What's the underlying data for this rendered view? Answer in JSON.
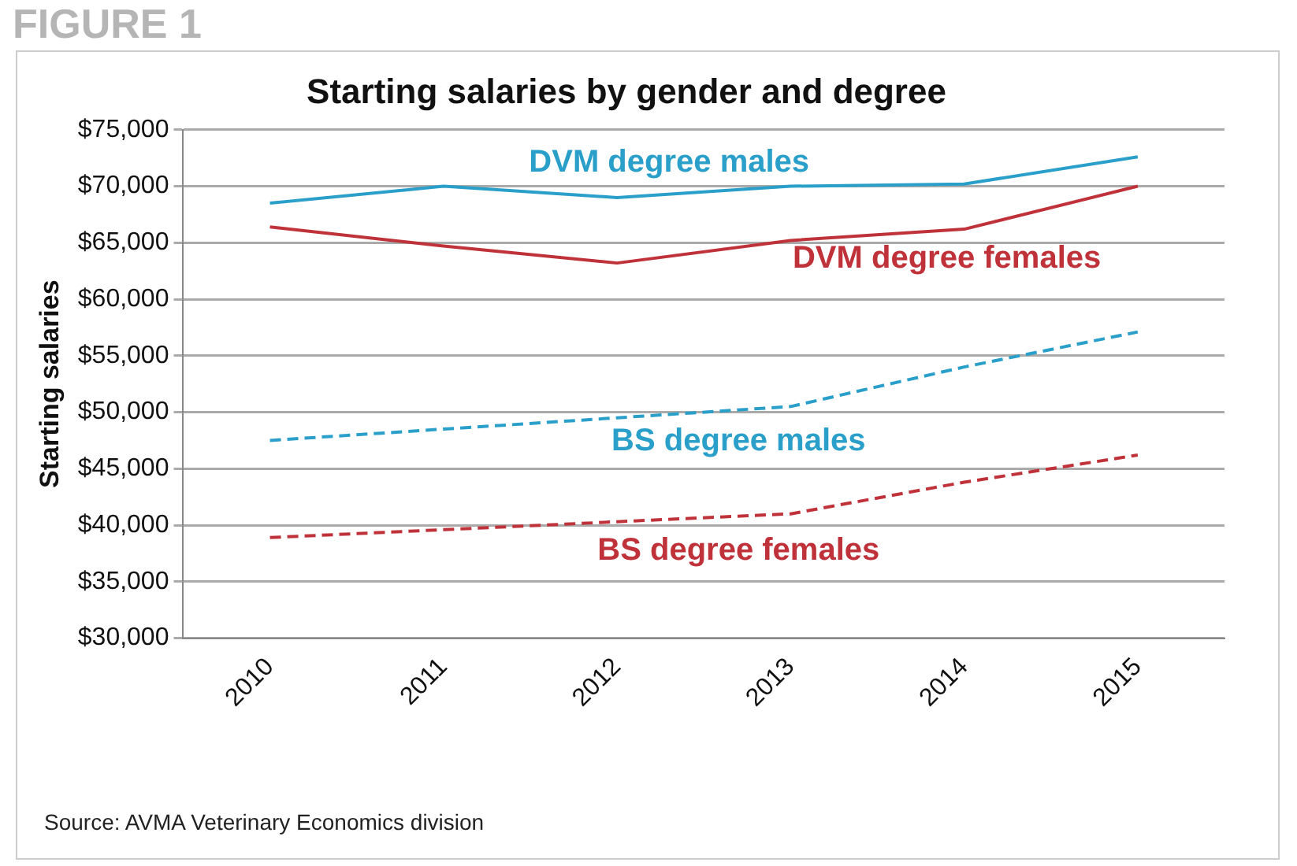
{
  "chart_data": {
    "type": "line",
    "title": "Starting salaries by gender and degree",
    "ylabel": "Starting salaries",
    "categories": [
      "2010",
      "2011",
      "2012",
      "2013",
      "2014",
      "2015"
    ],
    "series": [
      {
        "name": "DVM degree males",
        "color": "#2a9fc9",
        "line_style": "solid",
        "values": [
          68500,
          70000,
          69000,
          70000,
          70200,
          72600
        ]
      },
      {
        "name": "DVM degree females",
        "color": "#c0323a",
        "line_style": "solid",
        "values": [
          66400,
          64700,
          63200,
          65200,
          66200,
          70000
        ]
      },
      {
        "name": "BS degree males",
        "color": "#2a9fc9",
        "line_style": "dashed",
        "values": [
          47500,
          48500,
          49500,
          50500,
          54000,
          57100
        ]
      },
      {
        "name": "BS degree females",
        "color": "#c0323a",
        "line_style": "dashed",
        "values": [
          38900,
          39600,
          40300,
          41000,
          43800,
          46200
        ]
      }
    ],
    "ylim": [
      30000,
      75000
    ],
    "yticks": [
      {
        "value": 30000,
        "label": "$30,000"
      },
      {
        "value": 35000,
        "label": "$35,000"
      },
      {
        "value": 40000,
        "label": "$40,000"
      },
      {
        "value": 45000,
        "label": "$45,000"
      },
      {
        "value": 50000,
        "label": "$50,000"
      },
      {
        "value": 55000,
        "label": "$55,000"
      },
      {
        "value": 60000,
        "label": "$60,000"
      },
      {
        "value": 65000,
        "label": "$65,000"
      },
      {
        "value": 70000,
        "label": "$70,000"
      },
      {
        "value": 75000,
        "label": "$75,000"
      }
    ],
    "grid": "y",
    "legend": false,
    "marker": "none",
    "annotations": [
      "FIGURE 1",
      "Source: AVMA Veterinary Economics division"
    ]
  }
}
